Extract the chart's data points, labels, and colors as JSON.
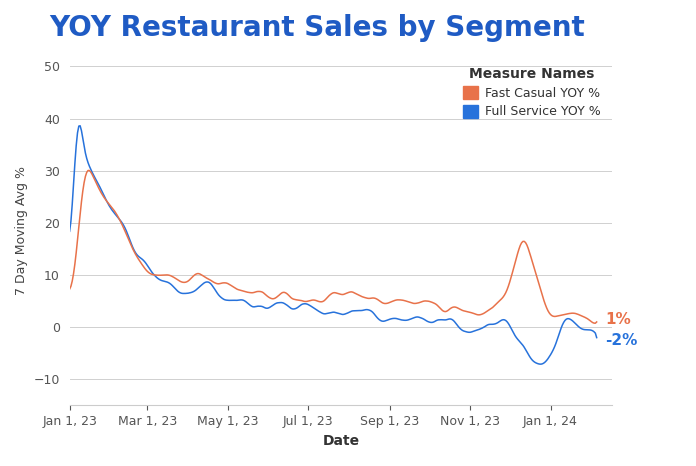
{
  "title": "YOY Restaurant Sales by Segment",
  "title_color": "#1f5bc4",
  "xlabel": "Date",
  "ylabel": "7 Day Moving Avg %",
  "legend_title": "Measure Names",
  "legend_labels": [
    "Fast Casual YOY %",
    "Full Service YOY %"
  ],
  "line_colors": [
    "#e8724a",
    "#2772db"
  ],
  "ylim": [
    -15,
    52
  ],
  "yticks": [
    -10,
    0,
    10,
    20,
    30,
    40,
    50
  ],
  "bg_color": "#ffffff",
  "grid_color": "#d0d0d0",
  "end_label_fc": "1%",
  "end_label_fs": "-2%",
  "end_label_fc_color": "#e8724a",
  "end_label_fs_color": "#2772db"
}
